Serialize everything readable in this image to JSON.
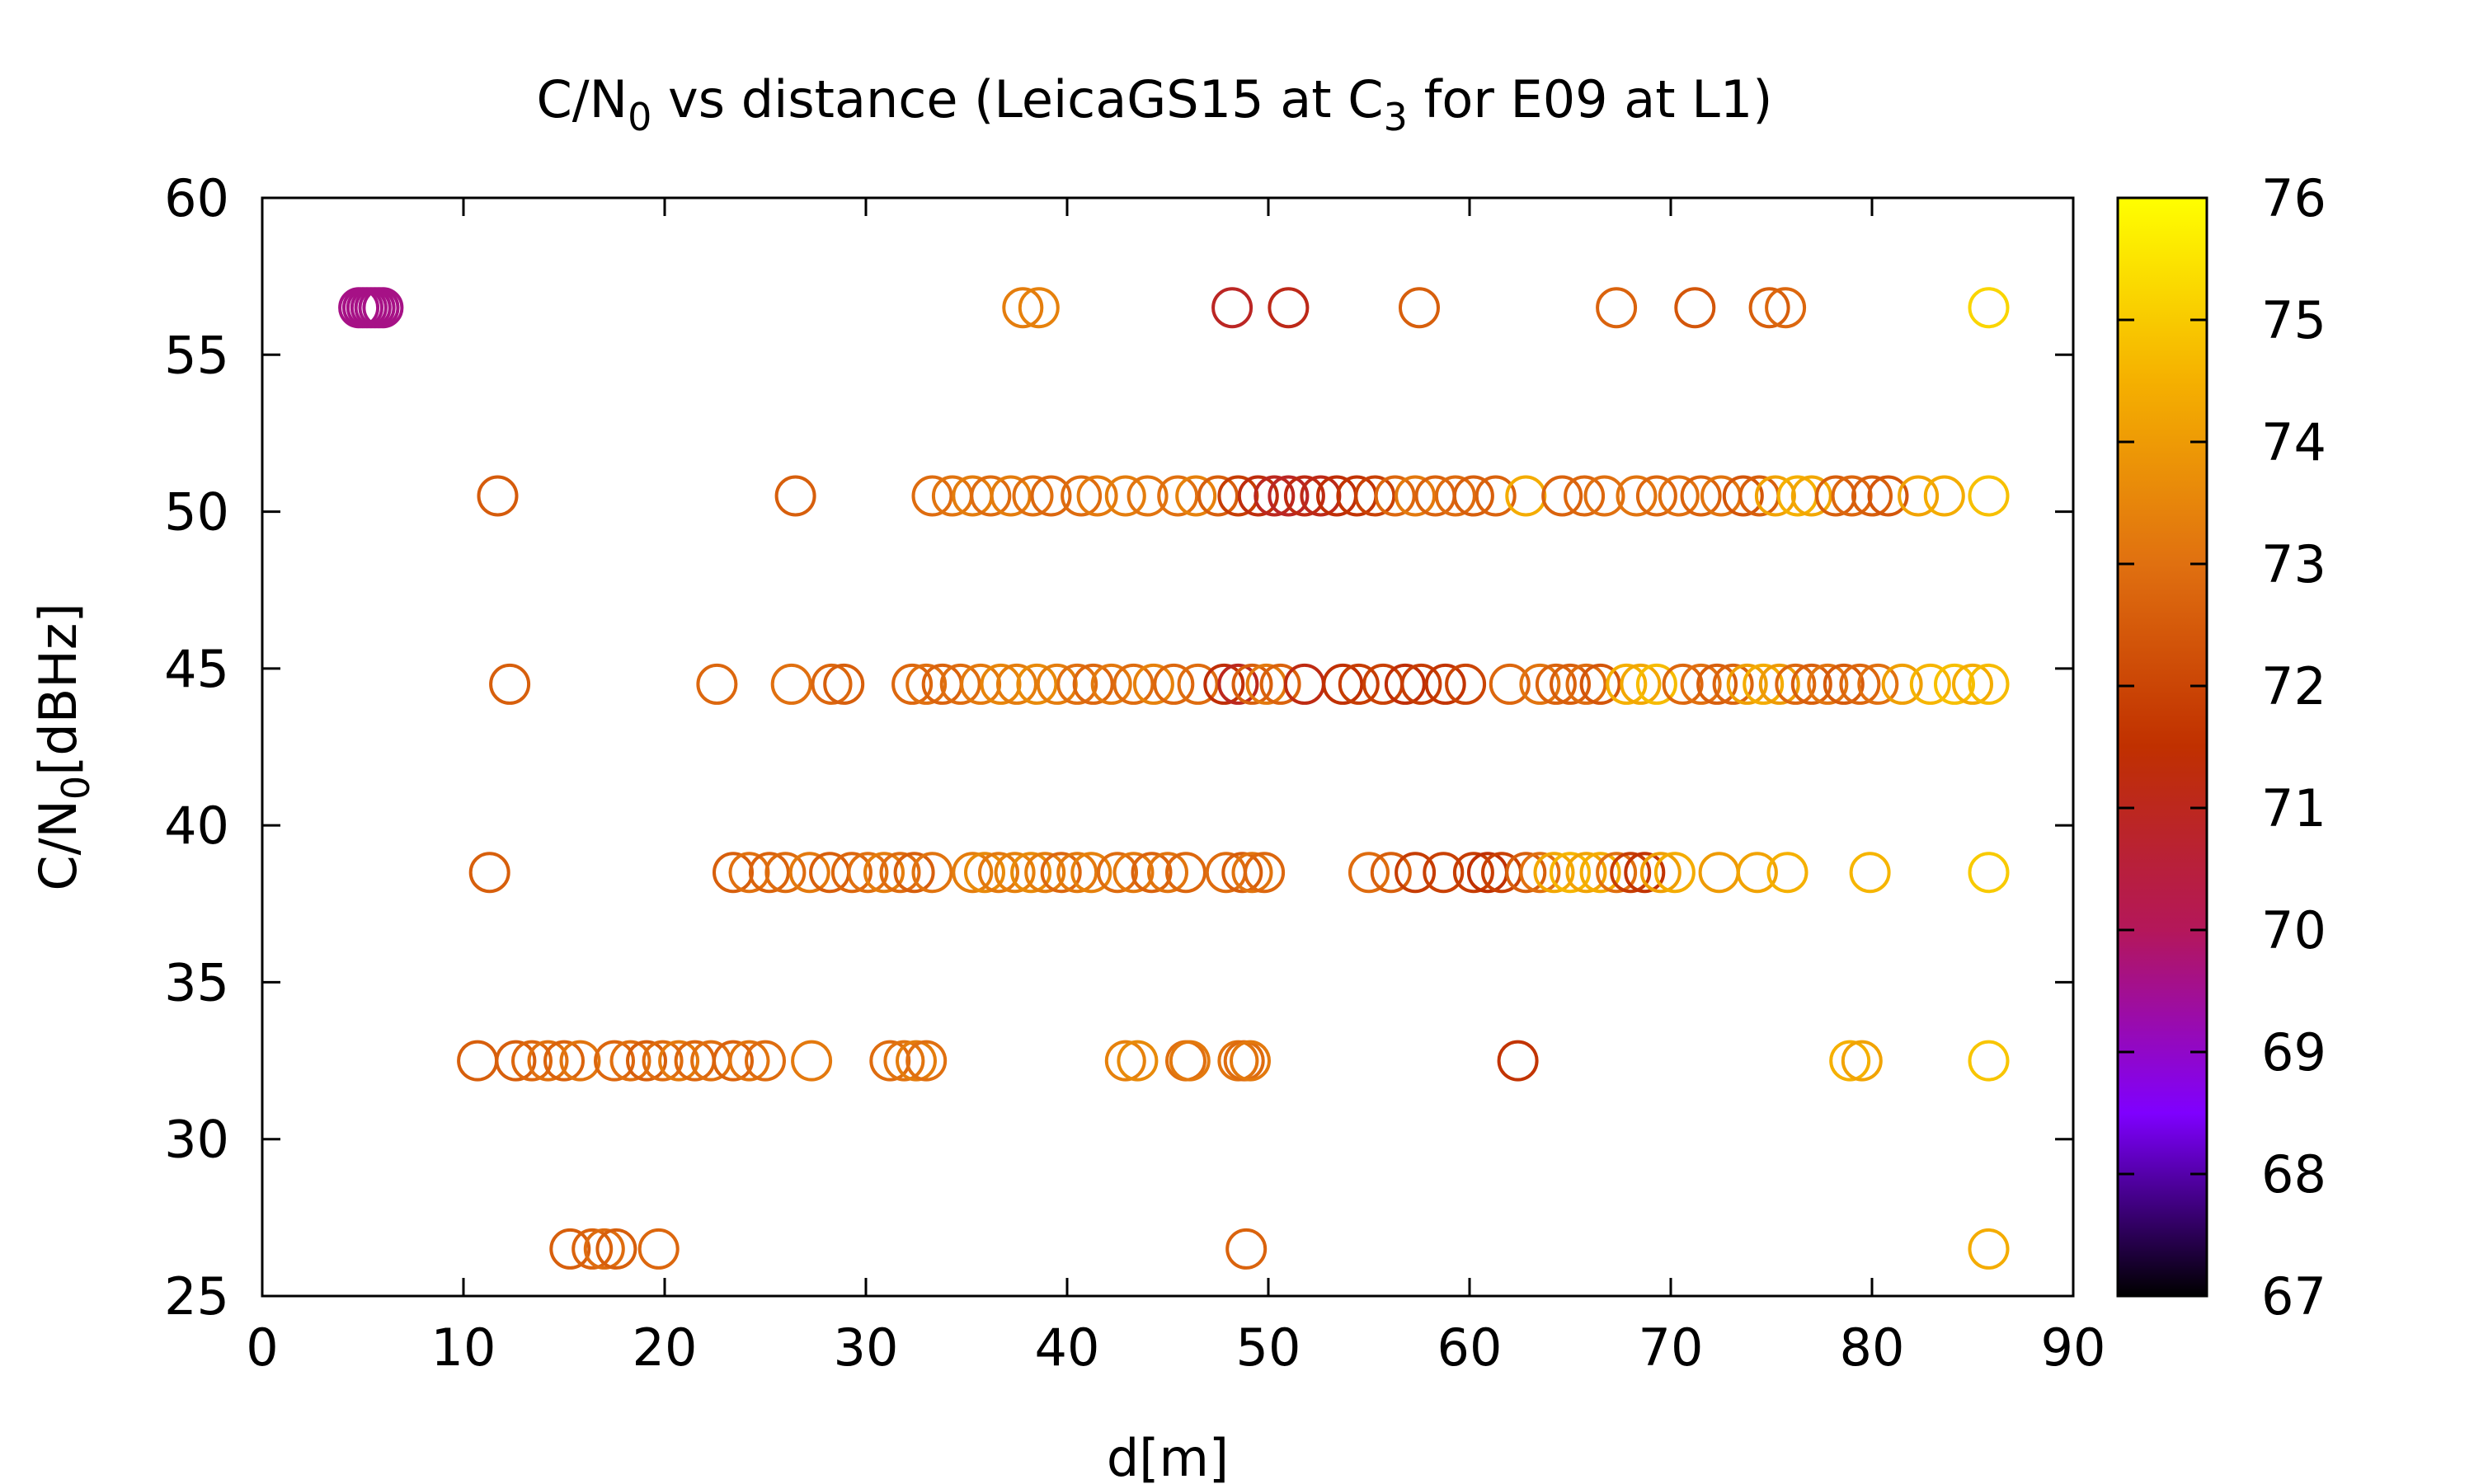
{
  "chart_data": {
    "type": "scatter",
    "title": "C/N",
    "title_sub1": "0",
    "title_mid": " vs distance (LeicaGS15 at C",
    "title_sub2": "3",
    "title_end": " for E09 at L1)",
    "xlabel": "d[m]",
    "ylabel": "C/N",
    "ylabel_sub": "0",
    "ylabel_end": "[dBHz]",
    "xlim": [
      0,
      90
    ],
    "ylim": [
      25,
      60
    ],
    "xticks": [
      0,
      10,
      20,
      30,
      40,
      50,
      60,
      70,
      80,
      90
    ],
    "yticks": [
      25,
      30,
      35,
      40,
      45,
      50,
      55,
      60
    ],
    "colorbar": {
      "range": [
        67,
        76
      ],
      "ticks": [
        67,
        68,
        69,
        70,
        71,
        72,
        73,
        74,
        75,
        76
      ],
      "palette": "gnuplot",
      "colors": [
        "#000000",
        "#7f00ff",
        "#b4175a",
        "#c03000",
        "#e07010",
        "#f5b000",
        "#ffff00"
      ]
    },
    "grid": false,
    "legend": "none",
    "series": [
      {
        "y": 56.5,
        "points": [
          [
            4.8,
            69.6
          ],
          [
            5.0,
            69.6
          ],
          [
            5.2,
            69.6
          ],
          [
            5.4,
            69.6
          ],
          [
            5.6,
            69.6
          ],
          [
            5.8,
            69.6
          ],
          [
            6.0,
            69.6
          ],
          [
            37.8,
            73.3
          ],
          [
            38.6,
            73.4
          ],
          [
            48.2,
            70.9
          ],
          [
            51.0,
            71.1
          ],
          [
            57.5,
            72.6
          ],
          [
            67.3,
            72.7
          ],
          [
            71.2,
            72.4
          ],
          [
            74.9,
            72.6
          ],
          [
            75.7,
            72.8
          ],
          [
            85.8,
            75.2
          ]
        ]
      },
      {
        "y": 50.5,
        "points": [
          [
            11.7,
            72.5
          ],
          [
            26.5,
            72.6
          ],
          [
            33.3,
            72.9
          ],
          [
            34.3,
            73.1
          ],
          [
            35.3,
            73.3
          ],
          [
            36.2,
            72.9
          ],
          [
            37.2,
            73.3
          ],
          [
            38.3,
            73.0
          ],
          [
            39.2,
            72.8
          ],
          [
            40.7,
            72.9
          ],
          [
            41.5,
            73.2
          ],
          [
            42.9,
            73.3
          ],
          [
            44.0,
            73.1
          ],
          [
            45.5,
            73.0
          ],
          [
            46.4,
            73.4
          ],
          [
            47.5,
            72.6
          ],
          [
            48.5,
            71.8
          ],
          [
            49.5,
            71.3
          ],
          [
            50.3,
            71.0
          ],
          [
            51.0,
            70.9
          ],
          [
            51.8,
            71.2
          ],
          [
            52.6,
            71.1
          ],
          [
            53.4,
            71.4
          ],
          [
            54.4,
            71.6
          ],
          [
            55.3,
            71.9
          ],
          [
            56.3,
            72.8
          ],
          [
            57.3,
            73.2
          ],
          [
            58.3,
            72.7
          ],
          [
            59.3,
            72.9
          ],
          [
            60.2,
            72.6
          ],
          [
            61.3,
            72.7
          ],
          [
            62.8,
            74.4
          ],
          [
            64.6,
            72.7
          ],
          [
            65.7,
            72.8
          ],
          [
            66.7,
            73.0
          ],
          [
            68.3,
            73.1
          ],
          [
            69.3,
            72.8
          ],
          [
            70.4,
            73.0
          ],
          [
            71.5,
            72.7
          ],
          [
            72.5,
            73.1
          ],
          [
            73.6,
            72.4
          ],
          [
            74.4,
            72.6
          ],
          [
            75.2,
            74.2
          ],
          [
            76.3,
            74.5
          ],
          [
            77.0,
            74.3
          ],
          [
            78.2,
            72.6
          ],
          [
            79.0,
            72.8
          ],
          [
            80.0,
            72.6
          ],
          [
            80.8,
            72.4
          ],
          [
            82.3,
            74.2
          ],
          [
            83.6,
            74.4
          ],
          [
            85.8,
            74.8
          ]
        ]
      },
      {
        "y": 44.5,
        "points": [
          [
            12.3,
            72.6
          ],
          [
            22.6,
            72.8
          ],
          [
            26.3,
            73.0
          ],
          [
            28.3,
            72.8
          ],
          [
            28.9,
            72.6
          ],
          [
            32.3,
            72.8
          ],
          [
            33.0,
            73.0
          ],
          [
            33.8,
            72.7
          ],
          [
            34.7,
            72.9
          ],
          [
            35.7,
            73.2
          ],
          [
            36.7,
            73.5
          ],
          [
            37.5,
            73.3
          ],
          [
            38.5,
            73.6
          ],
          [
            39.5,
            73.3
          ],
          [
            40.5,
            73.0
          ],
          [
            41.3,
            72.8
          ],
          [
            42.2,
            73.2
          ],
          [
            43.3,
            72.9
          ],
          [
            44.3,
            73.4
          ],
          [
            45.3,
            72.8
          ],
          [
            46.5,
            72.9
          ],
          [
            47.8,
            71.4
          ],
          [
            48.5,
            71.0
          ],
          [
            49.2,
            72.6
          ],
          [
            49.9,
            73.2
          ],
          [
            50.6,
            72.7
          ],
          [
            51.8,
            71.2
          ],
          [
            53.7,
            71.5
          ],
          [
            54.5,
            71.8
          ],
          [
            55.7,
            71.9
          ],
          [
            56.8,
            71.4
          ],
          [
            57.6,
            71.8
          ],
          [
            58.8,
            71.6
          ],
          [
            59.8,
            72.0
          ],
          [
            62.0,
            72.8
          ],
          [
            63.5,
            73.1
          ],
          [
            64.3,
            72.7
          ],
          [
            65.0,
            72.6
          ],
          [
            65.8,
            72.9
          ],
          [
            66.5,
            72.4
          ],
          [
            67.8,
            74.5
          ],
          [
            68.5,
            74.3
          ],
          [
            69.3,
            74.7
          ],
          [
            70.6,
            72.8
          ],
          [
            71.5,
            73.0
          ],
          [
            72.3,
            72.6
          ],
          [
            73.1,
            72.7
          ],
          [
            73.8,
            74.1
          ],
          [
            74.6,
            74.4
          ],
          [
            75.4,
            74.0
          ],
          [
            76.2,
            72.8
          ],
          [
            77.0,
            72.6
          ],
          [
            77.8,
            73.1
          ],
          [
            78.6,
            72.5
          ],
          [
            79.4,
            72.8
          ],
          [
            80.3,
            73.0
          ],
          [
            81.5,
            74.1
          ],
          [
            82.9,
            74.6
          ],
          [
            84.1,
            74.8
          ],
          [
            85.0,
            74.4
          ],
          [
            85.8,
            74.7
          ]
        ]
      },
      {
        "y": 38.5,
        "points": [
          [
            11.3,
            72.6
          ],
          [
            23.4,
            72.6
          ],
          [
            24.2,
            73.0
          ],
          [
            25.2,
            72.7
          ],
          [
            26.0,
            72.9
          ],
          [
            27.2,
            73.2
          ],
          [
            28.2,
            72.6
          ],
          [
            29.3,
            72.8
          ],
          [
            30.1,
            73.0
          ],
          [
            30.9,
            73.3
          ],
          [
            31.7,
            72.9
          ],
          [
            32.4,
            72.6
          ],
          [
            33.3,
            73.1
          ],
          [
            35.3,
            73.3
          ],
          [
            35.9,
            73.6
          ],
          [
            36.6,
            73.2
          ],
          [
            37.4,
            73.4
          ],
          [
            38.2,
            73.6
          ],
          [
            38.9,
            73.3
          ],
          [
            39.7,
            72.8
          ],
          [
            40.5,
            73.2
          ],
          [
            41.2,
            73.4
          ],
          [
            42.5,
            72.9
          ],
          [
            43.3,
            73.2
          ],
          [
            44.2,
            72.7
          ],
          [
            45.0,
            73.1
          ],
          [
            45.9,
            72.8
          ],
          [
            47.9,
            72.9
          ],
          [
            48.7,
            72.6
          ],
          [
            49.2,
            73.1
          ],
          [
            49.8,
            72.8
          ],
          [
            55.0,
            72.9
          ],
          [
            56.1,
            72.6
          ],
          [
            57.3,
            71.8
          ],
          [
            58.7,
            71.9
          ],
          [
            60.2,
            71.8
          ],
          [
            60.9,
            71.5
          ],
          [
            61.6,
            71.9
          ],
          [
            62.8,
            72.6
          ],
          [
            63.5,
            73.0
          ],
          [
            64.2,
            74.3
          ],
          [
            65.0,
            74.6
          ],
          [
            65.8,
            74.2
          ],
          [
            66.5,
            74.4
          ],
          [
            67.3,
            73.0
          ],
          [
            68.0,
            71.8
          ],
          [
            68.7,
            71.6
          ],
          [
            69.5,
            74.1
          ],
          [
            70.2,
            74.4
          ],
          [
            72.4,
            74.0
          ],
          [
            74.3,
            74.2
          ],
          [
            75.8,
            74.5
          ],
          [
            79.9,
            74.6
          ],
          [
            85.8,
            75.0
          ]
        ]
      },
      {
        "y": 32.5,
        "points": [
          [
            10.7,
            72.6
          ],
          [
            12.6,
            72.6
          ],
          [
            13.4,
            72.8
          ],
          [
            14.2,
            73.0
          ],
          [
            15.0,
            72.7
          ],
          [
            15.8,
            73.1
          ],
          [
            17.5,
            72.8
          ],
          [
            18.3,
            73.0
          ],
          [
            19.1,
            72.6
          ],
          [
            19.9,
            72.9
          ],
          [
            20.7,
            73.2
          ],
          [
            21.5,
            72.8
          ],
          [
            22.3,
            73.0
          ],
          [
            23.4,
            72.7
          ],
          [
            24.2,
            73.1
          ],
          [
            25.0,
            72.9
          ],
          [
            27.3,
            73.2
          ],
          [
            31.2,
            72.9
          ],
          [
            31.9,
            73.1
          ],
          [
            32.5,
            73.3
          ],
          [
            33.0,
            73.0
          ],
          [
            42.9,
            73.4
          ],
          [
            43.5,
            73.6
          ],
          [
            45.9,
            73.0
          ],
          [
            46.1,
            73.2
          ],
          [
            48.5,
            73.1
          ],
          [
            48.8,
            72.9
          ],
          [
            49.1,
            73.2
          ],
          [
            62.4,
            71.6
          ],
          [
            78.9,
            74.5
          ],
          [
            79.5,
            74.2
          ],
          [
            85.8,
            74.9
          ]
        ]
      },
      {
        "y": 26.5,
        "points": [
          [
            15.3,
            72.6
          ],
          [
            16.4,
            72.7
          ],
          [
            17.0,
            72.9
          ],
          [
            17.6,
            72.6
          ],
          [
            19.7,
            72.8
          ],
          [
            48.9,
            72.7
          ],
          [
            85.8,
            74.4
          ]
        ]
      }
    ]
  }
}
